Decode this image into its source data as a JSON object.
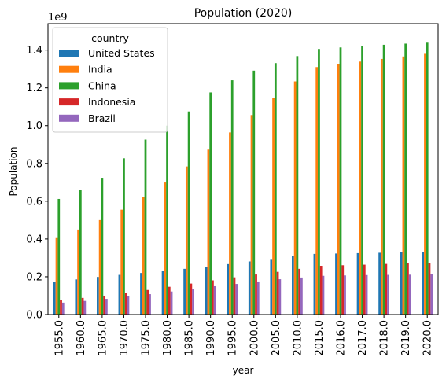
{
  "chart_data": {
    "type": "bar",
    "title": "Population (2020)",
    "xlabel": "year",
    "ylabel": "Population",
    "y_offset_label": "1e9",
    "ylim": [
      0,
      1.54
    ],
    "yticks": [
      "0.0",
      "0.2",
      "0.4",
      "0.6",
      "0.8",
      "1.0",
      "1.2",
      "1.4"
    ],
    "categories": [
      "1955.0",
      "1960.0",
      "1965.0",
      "1970.0",
      "1975.0",
      "1980.0",
      "1985.0",
      "1990.0",
      "1995.0",
      "2000.0",
      "2005.0",
      "2010.0",
      "2015.0",
      "2016.0",
      "2017.0",
      "2018.0",
      "2019.0",
      "2020.0"
    ],
    "legend": {
      "title": "country",
      "position": "upper left"
    },
    "series": [
      {
        "name": "United States",
        "color": "#1f77b4",
        "values": [
          0.171,
          0.186,
          0.199,
          0.21,
          0.22,
          0.23,
          0.242,
          0.253,
          0.267,
          0.281,
          0.294,
          0.309,
          0.321,
          0.323,
          0.325,
          0.327,
          0.329,
          0.331
        ]
      },
      {
        "name": "India",
        "color": "#ff7f0e",
        "values": [
          0.409,
          0.45,
          0.5,
          0.555,
          0.623,
          0.699,
          0.784,
          0.873,
          0.964,
          1.056,
          1.147,
          1.234,
          1.31,
          1.325,
          1.339,
          1.353,
          1.366,
          1.38
        ]
      },
      {
        "name": "China",
        "color": "#2ca02c",
        "values": [
          0.612,
          0.66,
          0.724,
          0.827,
          0.926,
          1.0,
          1.075,
          1.176,
          1.24,
          1.291,
          1.331,
          1.368,
          1.406,
          1.414,
          1.421,
          1.428,
          1.434,
          1.439
        ]
      },
      {
        "name": "Indonesia",
        "color": "#d62728",
        "values": [
          0.078,
          0.088,
          0.1,
          0.115,
          0.13,
          0.147,
          0.164,
          0.181,
          0.197,
          0.212,
          0.226,
          0.242,
          0.258,
          0.261,
          0.264,
          0.268,
          0.271,
          0.274
        ]
      },
      {
        "name": "Brazil",
        "color": "#9467bd",
        "values": [
          0.063,
          0.072,
          0.083,
          0.096,
          0.108,
          0.122,
          0.136,
          0.15,
          0.162,
          0.175,
          0.187,
          0.196,
          0.205,
          0.207,
          0.209,
          0.21,
          0.211,
          0.213
        ]
      }
    ]
  }
}
